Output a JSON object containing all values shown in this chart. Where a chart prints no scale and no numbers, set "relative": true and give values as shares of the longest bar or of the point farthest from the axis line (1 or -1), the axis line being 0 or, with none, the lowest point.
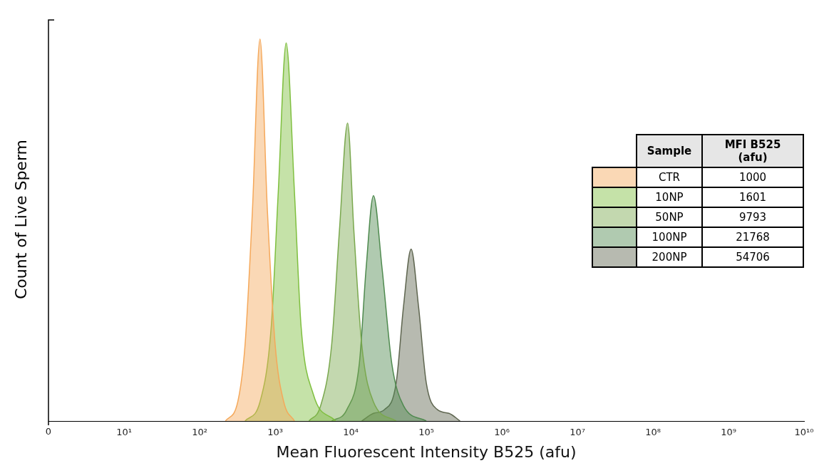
{
  "chart_data": {
    "type": "area",
    "relative": true,
    "log": "x",
    "xlabel": "Mean Fluorescent Intensity B525 (afu)",
    "ylabel": "Count of Live Sperm",
    "xlim": [
      0,
      10000000000
    ],
    "xticks": [
      0,
      {
        "value": 10,
        "label": "10¹"
      },
      {
        "value": 100,
        "label": "10²"
      },
      {
        "value": 1000,
        "label": "10³"
      },
      {
        "value": 10000,
        "label": "10⁴"
      },
      {
        "value": 100000,
        "label": "10⁵"
      },
      {
        "value": 1000000,
        "label": "10⁶"
      },
      {
        "value": 10000000,
        "label": "10⁷"
      },
      {
        "value": 100000000,
        "label": "10⁸"
      },
      {
        "value": 1000000000,
        "label": "10⁹"
      },
      {
        "value": 10000000000,
        "label": "10¹⁰"
      }
    ],
    "legend": "right",
    "legend_title": "Sample",
    "annotations": [
      "MFI B525 (afu)",
      "1000",
      "1601",
      "9793",
      "21768",
      "54706"
    ],
    "series": [
      {
        "name": "CTR",
        "color": "#f5a85a",
        "x": [
          220,
          320,
          400,
          500,
          630,
          790,
          1000,
          1300,
          1800
        ],
        "values": [
          0,
          0.05,
          0.2,
          0.55,
          1,
          0.55,
          0.2,
          0.05,
          0
        ]
      },
      {
        "name": "10NP",
        "color": "#7fbf3f",
        "x": [
          400,
          630,
          890,
          1100,
          1400,
          1800,
          2200,
          3200,
          6300
        ],
        "values": [
          0,
          0.05,
          0.25,
          0.6,
          0.99,
          0.6,
          0.25,
          0.07,
          0
        ]
      },
      {
        "name": "50NP",
        "color": "#7aa84e",
        "x": [
          2800,
          4000,
          5600,
          7100,
          9100,
          11000,
          14000,
          20000,
          40000
        ],
        "values": [
          0,
          0.04,
          0.2,
          0.5,
          0.78,
          0.5,
          0.2,
          0.05,
          0
        ]
      },
      {
        "name": "100NP",
        "color": "#4f8a4f",
        "x": [
          5600,
          8900,
          13000,
          16000,
          20000,
          26000,
          35000,
          50000,
          100000
        ],
        "values": [
          0,
          0.03,
          0.15,
          0.4,
          0.59,
          0.4,
          0.15,
          0.04,
          0
        ]
      },
      {
        "name": "200NP",
        "color": "#5f6650",
        "x": [
          14000,
          20000,
          28000,
          40000,
          50000,
          63000,
          79000,
          100000,
          140000,
          200000,
          280000
        ],
        "values": [
          0,
          0.02,
          0.03,
          0.1,
          0.3,
          0.45,
          0.3,
          0.1,
          0.03,
          0.02,
          0
        ]
      }
    ]
  }
}
